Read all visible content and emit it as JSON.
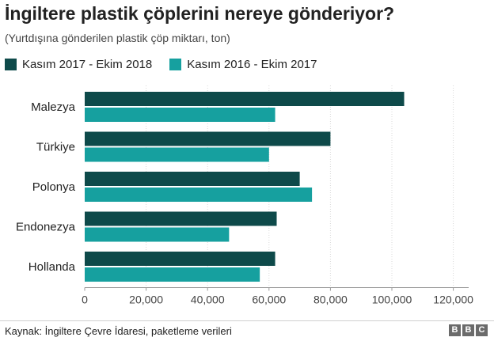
{
  "header": {
    "title": "İngiltere plastik çöplerini nereye gönderiyor?",
    "subtitle": "(Yurtdışına gönderilen plastik çöp miktarı, ton)"
  },
  "footer": {
    "source": "Kaynak: İngiltere Çevre İdaresi, paketleme verileri",
    "logo_letters": [
      "B",
      "B",
      "C"
    ]
  },
  "colors": {
    "series_dark": "#0e4a4a",
    "series_light": "#16a09f"
  },
  "chart_data": {
    "type": "bar",
    "orientation": "horizontal",
    "categories": [
      "Malezya",
      "Türkiye",
      "Polonya",
      "Endonezya",
      "Hollanda"
    ],
    "series": [
      {
        "name": "Kasım 2017 - Ekim 2018",
        "values": [
          104000,
          80000,
          70000,
          62500,
          62000
        ]
      },
      {
        "name": "Kasım 2016 - Ekim 2017",
        "values": [
          62000,
          60000,
          74000,
          47000,
          57000
        ]
      }
    ],
    "xlim": [
      0,
      125000
    ],
    "xticks": [
      0,
      20000,
      40000,
      60000,
      80000,
      100000,
      120000
    ],
    "xtick_labels": [
      "0",
      "20,000",
      "40,000",
      "60,000",
      "80,000",
      "100,000",
      "120,000"
    ],
    "grid": true,
    "legend_position": "top-left"
  }
}
